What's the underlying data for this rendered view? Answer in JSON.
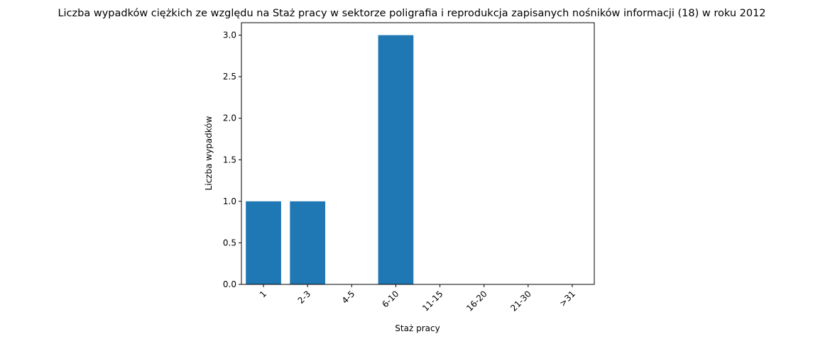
{
  "chart_data": {
    "type": "bar",
    "title": "Liczba wypadków ciężkich ze względu na Staż pracy w sektorze poligrafia i reprodukcja zapisanych nośników informacji  (18) w roku 2012",
    "xlabel": "Staż pracy",
    "ylabel": "Liczba wypadków",
    "categories": [
      "1",
      "2-3",
      "4-5",
      "6-10",
      "11-15",
      "16-20",
      "21-30",
      ">31"
    ],
    "values": [
      1,
      1,
      0,
      3,
      0,
      0,
      0,
      0
    ],
    "ylim": [
      0,
      3.15
    ],
    "yticks": [
      "0.0",
      "0.5",
      "1.0",
      "1.5",
      "2.0",
      "2.5",
      "3.0"
    ],
    "bar_color": "#1f77b4",
    "grid": false,
    "legend": false
  }
}
